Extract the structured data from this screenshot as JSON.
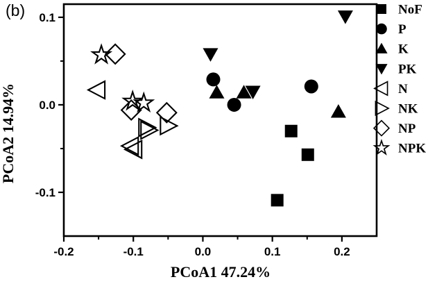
{
  "panel_label": "(b)",
  "colors": {
    "marker": "#000000",
    "axis": "#000000",
    "background": "#ffffff"
  },
  "chart_data": {
    "type": "scatter",
    "title": "",
    "xlabel": "PCoA1 47.24%",
    "ylabel": "PCoA2 14.94%",
    "xlim": [
      -0.2,
      0.25
    ],
    "ylim": [
      -0.15,
      0.115
    ],
    "grid": false,
    "legend_position": "right-outside",
    "x_major_ticks": [
      -0.2,
      -0.1,
      0.0,
      0.1,
      0.2
    ],
    "x_tick_labels": [
      "-0.2",
      "-0.1",
      "0.0",
      "0.1",
      "0.2"
    ],
    "x_minor_ticks": [
      -0.15,
      -0.05,
      0.05,
      0.15
    ],
    "y_major_ticks": [
      0.1,
      0.0,
      -0.1
    ],
    "y_tick_labels": [
      "0.1",
      "0.0",
      "-0.1"
    ],
    "y_minor_ticks": [
      0.05,
      -0.05
    ],
    "series": [
      {
        "name": "NoF",
        "marker": "filled-square",
        "points": [
          [
            0.127,
            -0.03
          ],
          [
            0.151,
            -0.057
          ],
          [
            0.107,
            -0.109
          ]
        ]
      },
      {
        "name": "P",
        "marker": "filled-circle",
        "points": [
          [
            0.015,
            0.029
          ],
          [
            0.045,
            0.0
          ],
          [
            0.156,
            0.021
          ]
        ]
      },
      {
        "name": "K",
        "marker": "filled-triangle-up",
        "points": [
          [
            0.02,
            0.014
          ],
          [
            0.059,
            0.014
          ],
          [
            0.195,
            -0.008
          ]
        ]
      },
      {
        "name": "PK",
        "marker": "filled-triangle-down",
        "points": [
          [
            0.011,
            0.058
          ],
          [
            0.072,
            0.015
          ],
          [
            0.205,
            0.101
          ]
        ]
      },
      {
        "name": "N",
        "marker": "open-triangle-left",
        "points": [
          [
            -0.152,
            0.017
          ],
          [
            -0.104,
            -0.047
          ],
          [
            -0.099,
            -0.051
          ]
        ]
      },
      {
        "name": "NK",
        "marker": "open-triangle-right",
        "points": [
          [
            -0.081,
            -0.026
          ],
          [
            -0.078,
            -0.029
          ],
          [
            -0.05,
            -0.024
          ]
        ]
      },
      {
        "name": "NP",
        "marker": "open-diamond",
        "points": [
          [
            -0.126,
            0.058
          ],
          [
            -0.103,
            -0.006
          ],
          [
            -0.052,
            -0.009
          ]
        ]
      },
      {
        "name": "NPK",
        "marker": "open-star",
        "points": [
          [
            -0.146,
            0.057
          ],
          [
            -0.101,
            0.004
          ],
          [
            -0.085,
            0.002
          ]
        ]
      }
    ]
  }
}
